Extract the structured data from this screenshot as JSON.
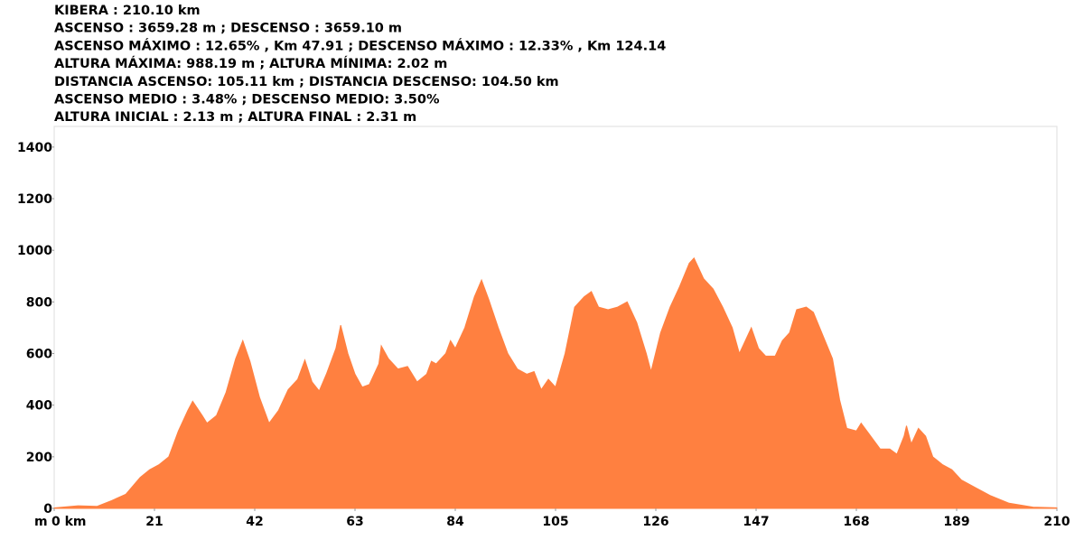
{
  "chart_data": {
    "type": "area",
    "info_lines": [
      "KIBERA : 210.10 km",
      "ASCENSO : 3659.28 m ; DESCENSO : 3659.10 m",
      "ASCENSO MÁXIMO : 12.65% , Km 47.91 ; DESCENSO MÁXIMO : 12.33% , Km 124.14",
      "ALTURA MÁXIMA: 988.19 m ; ALTURA MÍNIMA: 2.02 m",
      "DISTANCIA ASCENSO: 105.11 km ; DISTANCIA DESCENSO: 104.50 km",
      "ASCENSO MEDIO : 3.48% ; DESCENSO MEDIO: 3.50%",
      "ALTURA INICIAL : 2.13 m ; ALTURA FINAL : 2.31 m"
    ],
    "y_label": "m",
    "x": [
      0,
      5,
      9,
      12,
      15,
      18,
      20,
      22,
      24,
      26,
      28,
      29,
      31,
      32,
      34,
      36,
      38,
      39.5,
      41,
      43,
      45,
      47,
      49,
      51,
      52.5,
      54,
      55.5,
      57,
      59,
      60,
      61.5,
      63,
      64.5,
      66,
      68,
      68.5,
      70,
      72,
      74,
      76,
      78,
      79,
      80,
      82,
      83,
      84,
      86,
      88,
      89.5,
      91,
      93,
      95,
      97,
      99,
      100.5,
      102,
      103.5,
      105,
      107,
      109,
      111,
      112.5,
      114,
      116,
      118,
      120,
      122,
      124,
      125,
      127,
      129,
      131,
      133,
      134,
      136,
      138,
      140,
      142,
      143.5,
      145,
      146,
      147.5,
      149,
      151,
      152.5,
      154,
      155.5,
      157.5,
      159,
      161,
      163,
      164.5,
      166,
      168,
      169,
      171,
      173,
      175,
      176.5,
      178,
      178.5,
      179.5,
      181,
      182.5,
      184,
      186,
      188,
      190,
      193,
      196,
      200,
      205,
      210
    ],
    "series": [
      {
        "color": "#ff8040",
        "values": [
          2,
          10,
          8,
          30,
          55,
          120,
          150,
          170,
          200,
          300,
          380,
          415,
          360,
          330,
          360,
          450,
          580,
          650,
          570,
          430,
          330,
          380,
          460,
          500,
          575,
          490,
          455,
          520,
          620,
          710,
          600,
          520,
          470,
          480,
          560,
          630,
          580,
          540,
          550,
          490,
          520,
          570,
          560,
          600,
          650,
          620,
          700,
          820,
          885,
          810,
          700,
          600,
          540,
          520,
          530,
          460,
          500,
          470,
          600,
          780,
          820,
          840,
          780,
          770,
          780,
          800,
          720,
          600,
          530,
          680,
          780,
          860,
          950,
          970,
          890,
          850,
          780,
          700,
          600,
          660,
          700,
          620,
          590,
          590,
          650,
          680,
          770,
          780,
          760,
          670,
          580,
          420,
          310,
          300,
          330,
          280,
          230,
          230,
          210,
          280,
          320,
          250,
          310,
          280,
          200,
          170,
          150,
          110,
          80,
          50,
          20,
          5,
          2.3
        ]
      }
    ],
    "xlim": [
      0,
      210
    ],
    "xticks": [
      {
        "value": 0,
        "label": "0 km"
      },
      21,
      42,
      63,
      84,
      105,
      126,
      147,
      168,
      189,
      210
    ],
    "ylim": [
      0,
      1480
    ],
    "yticks": [
      0,
      200,
      400,
      600,
      800,
      1000,
      1200,
      1400
    ]
  }
}
